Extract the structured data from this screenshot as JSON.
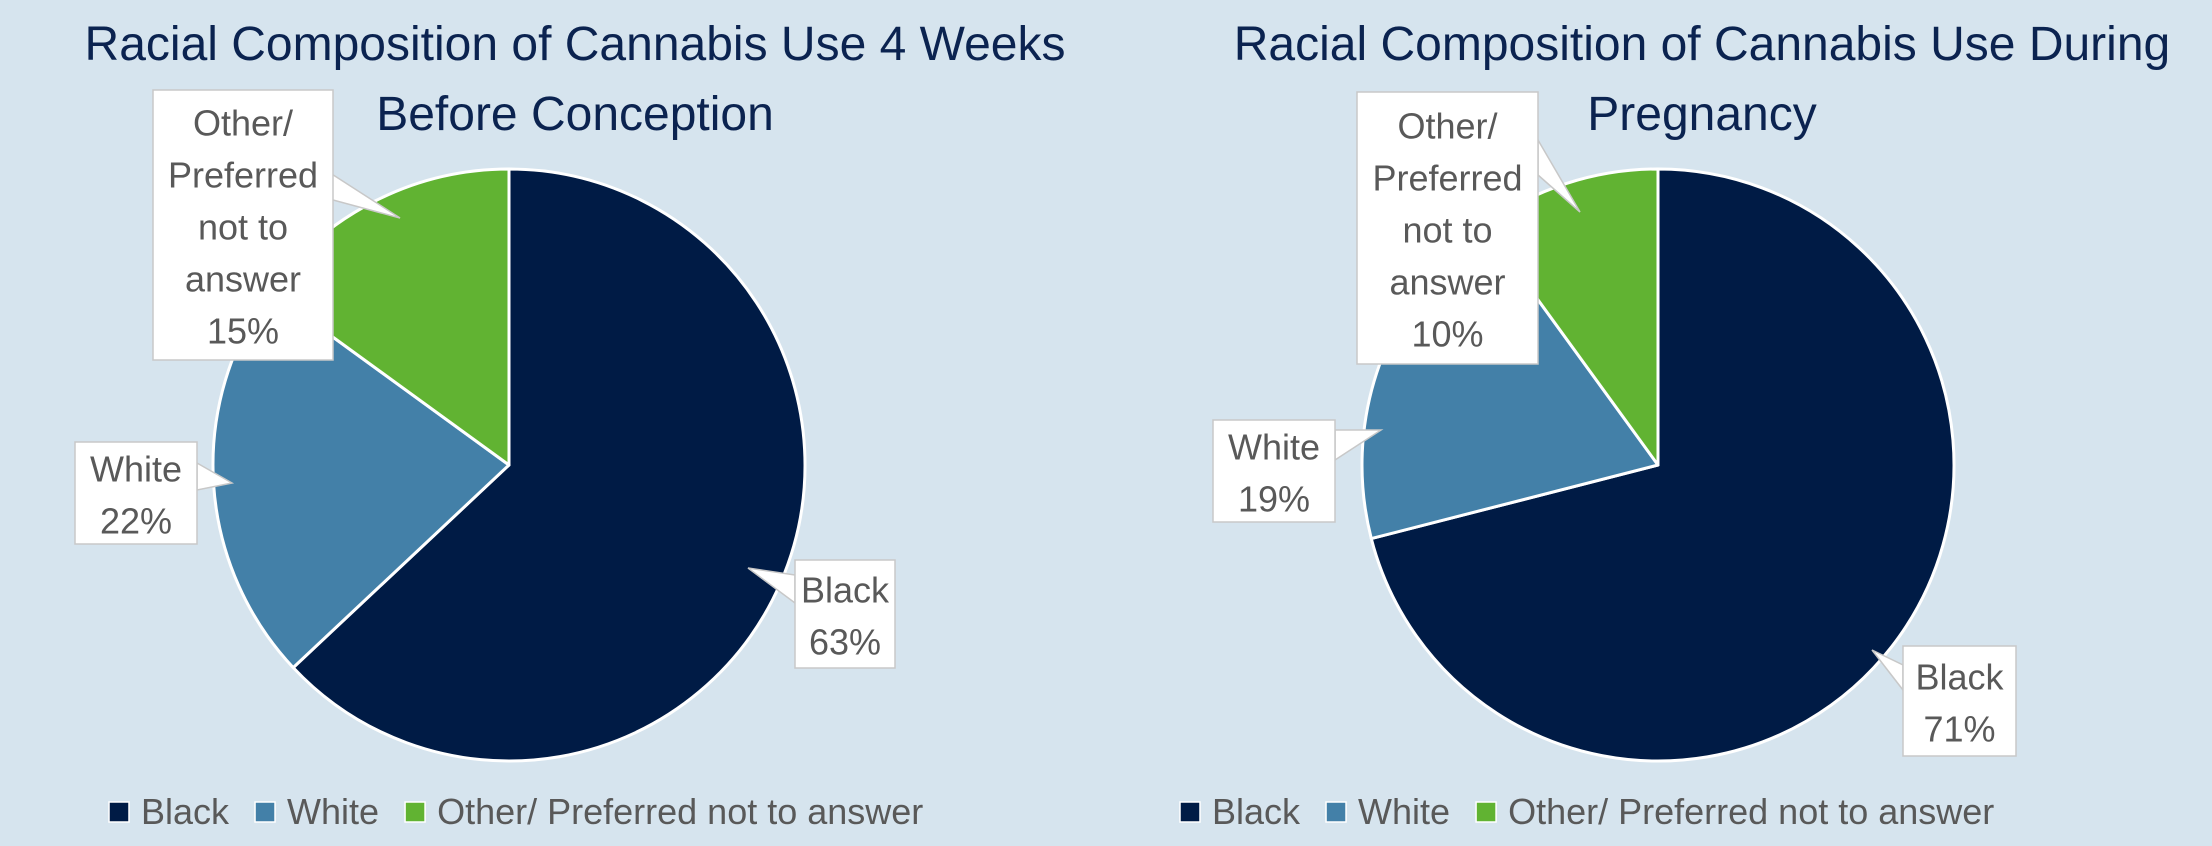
{
  "colors": {
    "background": "#d6e4ee",
    "title": "#0b2350",
    "label_text": "#595959",
    "Black": "#001b45",
    "White": "#4380a8",
    "Other/ Preferred not to answer": "#61b332"
  },
  "chart_data": [
    {
      "type": "pie",
      "title": "Racial Composition of Cannabis Use 4 Weeks Before Conception",
      "title_lines": [
        "Racial Composition of Cannabis Use 4 Weeks",
        "Before Conception"
      ],
      "slices": [
        {
          "name": "Black",
          "value": 63,
          "label_lines": [
            "Black",
            "63%"
          ]
        },
        {
          "name": "White",
          "value": 22,
          "label_lines": [
            "White",
            "22%"
          ]
        },
        {
          "name": "Other/ Preferred not to answer",
          "value": 15,
          "label_lines": [
            "Other/",
            "Preferred",
            "not to",
            "answer",
            "15%"
          ]
        }
      ],
      "legend": [
        "Black",
        "White",
        "Other/ Preferred not to answer"
      ],
      "legend_position": "bottom"
    },
    {
      "type": "pie",
      "title": "Racial Composition of Cannabis Use During Pregnancy",
      "title_lines": [
        "Racial Composition of Cannabis Use During",
        "Pregnancy"
      ],
      "slices": [
        {
          "name": "Black",
          "value": 71,
          "label_lines": [
            "Black",
            "71%"
          ]
        },
        {
          "name": "White",
          "value": 19,
          "label_lines": [
            "White",
            "19%"
          ]
        },
        {
          "name": "Other/ Preferred not to answer",
          "value": 10,
          "label_lines": [
            "Other/",
            "Preferred",
            "not to",
            "answer",
            "10%"
          ]
        }
      ],
      "legend": [
        "Black",
        "White",
        "Other/ Preferred not to answer"
      ],
      "legend_position": "bottom"
    }
  ]
}
